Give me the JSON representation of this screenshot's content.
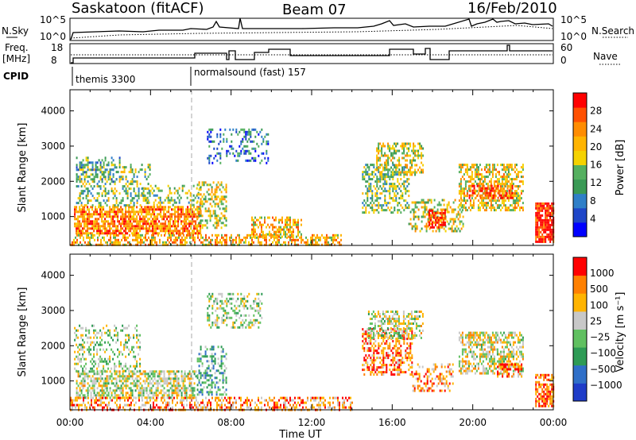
{
  "header": {
    "station": "Saskatoon (fitACF)",
    "beam": "Beam 07",
    "date": "16/Feb/2010"
  },
  "strips": {
    "nsky_label": "N.Sky",
    "nsky_ticks": [
      "10^5",
      "10^0"
    ],
    "nsearch_label": "N.Search",
    "nsearch_ticks": [
      "10^5",
      "10^0"
    ],
    "freq_label_1": "Freq.",
    "freq_label_2": "[MHz]",
    "freq_ticks": [
      "18",
      "8"
    ],
    "nave_label": "Nave",
    "nave_ticks": [
      "60",
      "0"
    ],
    "cpid_label": "CPID",
    "cpid_segments": [
      {
        "name": "themis 3300",
        "start_hour": 0.0
      },
      {
        "name": "normalsound (fast) 157",
        "start_hour": 6.0
      }
    ]
  },
  "chart_data": [
    {
      "type": "heatmap",
      "title": "",
      "xlabel": "",
      "ylabel": "Slant Range [km]",
      "x_range_hours": [
        0,
        24
      ],
      "ylim_km": [
        180,
        4600
      ],
      "y_ticks": [
        "4000",
        "3000",
        "2000",
        "1000"
      ],
      "colorbar_label": "Power [dB]",
      "colorbar_ticks": [
        "28",
        "24",
        "20",
        "16",
        "12",
        "8",
        "4"
      ],
      "colors": [
        "#0000ff",
        "#1e46c8",
        "#2f7fc8",
        "#3a9a55",
        "#55b060",
        "#f5d200",
        "#ffb400",
        "#ff8c00",
        "#ff5000",
        "#ff0000"
      ],
      "regions": [
        {
          "t0": 0.2,
          "t1": 6.5,
          "r0": 500,
          "r1": 1300,
          "level": 0.75,
          "density": 0.75
        },
        {
          "t0": 0.0,
          "t1": 13.5,
          "r0": 200,
          "r1": 500,
          "level": 0.65,
          "density": 0.55
        },
        {
          "t0": 0.3,
          "t1": 4.0,
          "r0": 1300,
          "r1": 2500,
          "level": 0.45,
          "density": 0.3
        },
        {
          "t0": 0.3,
          "t1": 2.5,
          "r0": 2000,
          "r1": 2700,
          "level": 0.35,
          "density": 0.3
        },
        {
          "t0": 3.5,
          "t1": 6.5,
          "r0": 1300,
          "r1": 1900,
          "level": 0.45,
          "density": 0.3
        },
        {
          "t0": 6.3,
          "t1": 7.8,
          "r0": 700,
          "r1": 2000,
          "level": 0.55,
          "density": 0.4
        },
        {
          "t0": 6.8,
          "t1": 9.8,
          "r0": 2500,
          "r1": 3500,
          "level": 0.25,
          "density": 0.25
        },
        {
          "t0": 9.0,
          "t1": 11.5,
          "r0": 450,
          "r1": 1000,
          "level": 0.65,
          "density": 0.45
        },
        {
          "t0": 14.5,
          "t1": 16.8,
          "r0": 1100,
          "r1": 2500,
          "level": 0.45,
          "density": 0.45
        },
        {
          "t0": 15.2,
          "t1": 17.5,
          "r0": 2200,
          "r1": 3100,
          "level": 0.55,
          "density": 0.5
        },
        {
          "t0": 16.8,
          "t1": 19.5,
          "r0": 600,
          "r1": 1500,
          "level": 0.55,
          "density": 0.35
        },
        {
          "t0": 17.8,
          "t1": 18.6,
          "r0": 700,
          "r1": 1200,
          "level": 0.9,
          "density": 0.7
        },
        {
          "t0": 19.3,
          "t1": 22.5,
          "r0": 1200,
          "r1": 2500,
          "level": 0.6,
          "density": 0.55
        },
        {
          "t0": 19.8,
          "t1": 22.0,
          "r0": 1500,
          "r1": 1900,
          "level": 0.85,
          "density": 0.6
        },
        {
          "t0": 23.1,
          "t1": 24.0,
          "r0": 300,
          "r1": 1400,
          "level": 0.95,
          "density": 0.85
        }
      ]
    },
    {
      "type": "heatmap",
      "title": "",
      "xlabel": "Time UT",
      "ylabel": "Slant Range [km]",
      "x_range_hours": [
        0,
        24
      ],
      "x_ticks": [
        "00:00",
        "04:00",
        "08:00",
        "12:00",
        "16:00",
        "20:00",
        "00:00"
      ],
      "ylim_km": [
        180,
        4600
      ],
      "y_ticks": [
        "4000",
        "3000",
        "2000",
        "1000"
      ],
      "colorbar_label": "Velocity [m s⁻¹]",
      "colorbar_ticks": [
        "1000",
        "500",
        "100",
        "25",
        "−25",
        "−100",
        "−500",
        "−1000"
      ],
      "colors": [
        "#1e3cc8",
        "#2f6fc8",
        "#2e9b55",
        "#60c060",
        "#c8c8c8",
        "#ffb400",
        "#ff8000",
        "#ff0000"
      ],
      "regions": [
        {
          "t0": 0.3,
          "t1": 6.3,
          "r0": 500,
          "r1": 1300,
          "level": 0.55,
          "density": 0.6
        },
        {
          "t0": 0.0,
          "t1": 14.0,
          "r0": 200,
          "r1": 550,
          "level": 0.75,
          "density": 0.45
        },
        {
          "t0": 0.2,
          "t1": 3.5,
          "r0": 1300,
          "r1": 2600,
          "level": 0.5,
          "density": 0.3
        },
        {
          "t0": 6.3,
          "t1": 7.8,
          "r0": 600,
          "r1": 2000,
          "level": 0.35,
          "density": 0.4
        },
        {
          "t0": 6.8,
          "t1": 9.5,
          "r0": 2500,
          "r1": 3500,
          "level": 0.5,
          "density": 0.3
        },
        {
          "t0": 14.5,
          "t1": 17.0,
          "r0": 1200,
          "r1": 2500,
          "level": 0.8,
          "density": 0.45
        },
        {
          "t0": 14.8,
          "t1": 17.5,
          "r0": 2200,
          "r1": 3000,
          "level": 0.55,
          "density": 0.5
        },
        {
          "t0": 17.0,
          "t1": 19.0,
          "r0": 700,
          "r1": 1500,
          "level": 0.75,
          "density": 0.35
        },
        {
          "t0": 19.3,
          "t1": 22.5,
          "r0": 1200,
          "r1": 2400,
          "level": 0.58,
          "density": 0.55
        },
        {
          "t0": 21.2,
          "t1": 22.4,
          "r0": 1100,
          "r1": 1500,
          "level": 0.8,
          "density": 0.6
        },
        {
          "t0": 23.1,
          "t1": 24.0,
          "r0": 300,
          "r1": 1200,
          "level": 0.85,
          "density": 0.7
        }
      ]
    }
  ]
}
